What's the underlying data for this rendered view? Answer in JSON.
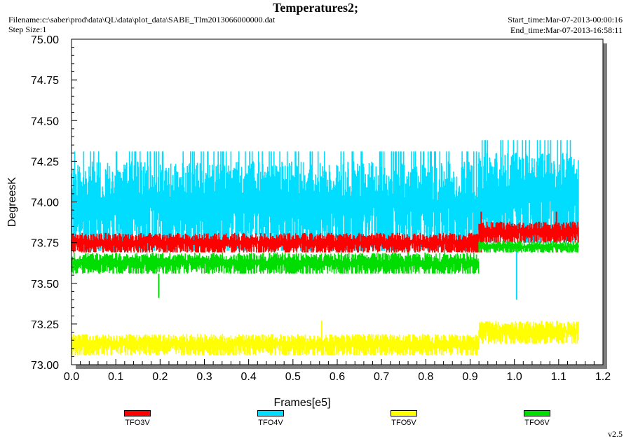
{
  "header": {
    "title": "Temperatures2;",
    "filename": "Filename:c:\\saber\\prod\\data\\QL\\data\\plot_data\\SABE_Tlm2013066000000.dat",
    "step_size": "Step Size:1",
    "start_time": "Start_time:Mar-07-2013-00:00:16",
    "end_time": "End_time:Mar-07-2013-16:58:11"
  },
  "footer": {
    "version": "v2.5"
  },
  "colors": {
    "TFO3V": "#ff0000",
    "TFO4V": "#00ddff",
    "TFO5V": "#ffff00",
    "TFO6V": "#00dd00",
    "frame": "#000000",
    "shadow": "#808080"
  },
  "chart_data": {
    "type": "line",
    "xlabel": "Frames[e5]",
    "ylabel": "DegreesK",
    "xlim": [
      0.0,
      1.2
    ],
    "ylim": [
      73.0,
      75.0
    ],
    "x_ticks": [
      "0.0",
      "0.1",
      "0.2",
      "0.3",
      "0.4",
      "0.5",
      "0.6",
      "0.7",
      "0.8",
      "0.9",
      "1.0",
      "1.1",
      "1.2"
    ],
    "y_ticks": [
      "73.00",
      "73.25",
      "73.50",
      "73.75",
      "74.00",
      "74.25",
      "74.50",
      "74.75",
      "75.00"
    ],
    "grid": false,
    "legend_position": "bottom",
    "series": [
      {
        "name": "TFO4V",
        "color": "#00ddff",
        "segments": [
          {
            "x_start": 0.0,
            "x_end": 0.92,
            "low": 73.7,
            "high": 74.25,
            "spike_high": 74.31
          },
          {
            "x_start": 0.92,
            "x_end": 1.145,
            "low": 73.75,
            "high": 74.31,
            "spike_high": 74.38
          }
        ],
        "spikes": [
          {
            "x": 1.005,
            "y": 73.4
          }
        ]
      },
      {
        "name": "TFO3V",
        "color": "#ff0000",
        "segments": [
          {
            "x_start": 0.0,
            "x_end": 0.92,
            "low": 73.69,
            "high": 73.81
          },
          {
            "x_start": 0.92,
            "x_end": 1.145,
            "low": 73.75,
            "high": 73.88
          }
        ],
        "spikes": [
          {
            "x": 0.925,
            "y": 73.94
          },
          {
            "x": 1.095,
            "y": 73.94
          }
        ]
      },
      {
        "name": "TFO6V",
        "color": "#00dd00",
        "segments": [
          {
            "x_start": 0.0,
            "x_end": 0.92,
            "low": 73.56,
            "high": 73.69
          },
          {
            "x_start": 0.92,
            "x_end": 1.145,
            "low": 73.69,
            "high": 73.76
          }
        ],
        "spikes": [
          {
            "x": 0.197,
            "y": 73.41
          }
        ]
      },
      {
        "name": "TFO5V",
        "color": "#ffff00",
        "segments": [
          {
            "x_start": 0.0,
            "x_end": 0.92,
            "low": 73.06,
            "high": 73.19
          },
          {
            "x_start": 0.92,
            "x_end": 1.145,
            "low": 73.13,
            "high": 73.27
          }
        ],
        "spikes": [
          {
            "x": 0.565,
            "y": 73.27
          }
        ]
      }
    ]
  },
  "legend": [
    {
      "name": "TFO3V",
      "color": "#ff0000"
    },
    {
      "name": "TFO4V",
      "color": "#00ddff"
    },
    {
      "name": "TFO5V",
      "color": "#ffff00"
    },
    {
      "name": "TFO6V",
      "color": "#00dd00"
    }
  ]
}
